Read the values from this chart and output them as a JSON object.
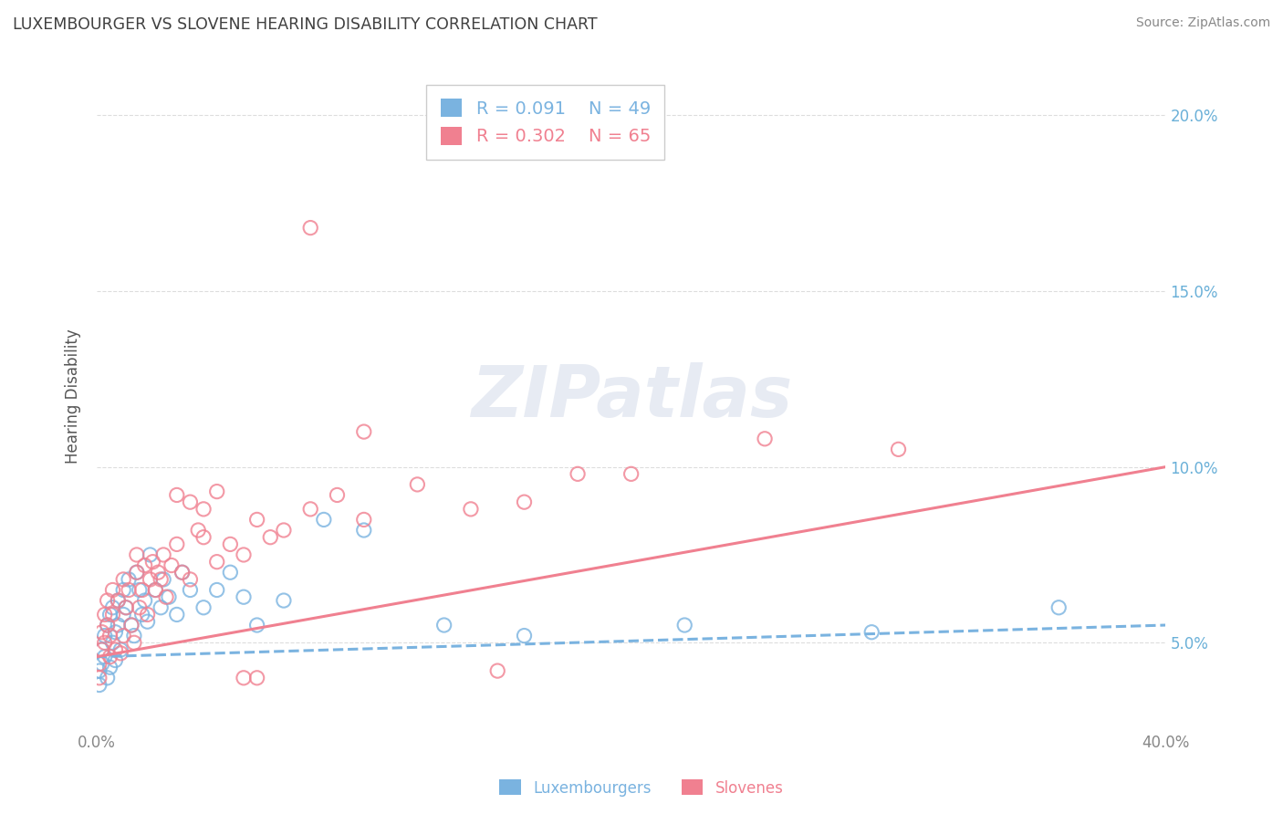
{
  "title": "LUXEMBOURGER VS SLOVENE HEARING DISABILITY CORRELATION CHART",
  "source": "Source: ZipAtlas.com",
  "ylabel": "Hearing Disability",
  "xlim": [
    0.0,
    0.4
  ],
  "ylim": [
    0.025,
    0.215
  ],
  "ytick_vals": [
    0.05,
    0.1,
    0.15,
    0.2
  ],
  "ytick_labels": [
    "5.0%",
    "10.0%",
    "15.0%",
    "20.0%"
  ],
  "xtick_vals": [
    0.0,
    0.4
  ],
  "xtick_labels": [
    "0.0%",
    "40.0%"
  ],
  "watermark": "ZIPatlas",
  "legend_lux": {
    "R": 0.091,
    "N": 49
  },
  "legend_slov": {
    "R": 0.302,
    "N": 65
  },
  "lux_color": "#7ab3e0",
  "slov_color": "#f08090",
  "lux_scatter_x": [
    0.001,
    0.001,
    0.002,
    0.002,
    0.003,
    0.003,
    0.004,
    0.004,
    0.005,
    0.005,
    0.006,
    0.006,
    0.007,
    0.007,
    0.008,
    0.008,
    0.009,
    0.01,
    0.01,
    0.011,
    0.012,
    0.013,
    0.014,
    0.015,
    0.016,
    0.017,
    0.018,
    0.019,
    0.02,
    0.022,
    0.024,
    0.025,
    0.027,
    0.03,
    0.032,
    0.035,
    0.04,
    0.045,
    0.05,
    0.055,
    0.06,
    0.07,
    0.085,
    0.1,
    0.13,
    0.16,
    0.22,
    0.29,
    0.36
  ],
  "lux_scatter_y": [
    0.042,
    0.038,
    0.048,
    0.044,
    0.052,
    0.046,
    0.055,
    0.04,
    0.058,
    0.043,
    0.05,
    0.06,
    0.053,
    0.045,
    0.062,
    0.055,
    0.048,
    0.065,
    0.058,
    0.06,
    0.068,
    0.055,
    0.052,
    0.07,
    0.065,
    0.058,
    0.062,
    0.056,
    0.075,
    0.065,
    0.06,
    0.068,
    0.063,
    0.058,
    0.07,
    0.065,
    0.06,
    0.065,
    0.07,
    0.063,
    0.055,
    0.062,
    0.085,
    0.082,
    0.055,
    0.052,
    0.055,
    0.053,
    0.06
  ],
  "slov_scatter_x": [
    0.001,
    0.001,
    0.002,
    0.002,
    0.003,
    0.003,
    0.004,
    0.004,
    0.005,
    0.005,
    0.006,
    0.006,
    0.007,
    0.008,
    0.009,
    0.01,
    0.01,
    0.011,
    0.012,
    0.013,
    0.014,
    0.015,
    0.015,
    0.016,
    0.017,
    0.018,
    0.019,
    0.02,
    0.021,
    0.022,
    0.023,
    0.024,
    0.025,
    0.026,
    0.028,
    0.03,
    0.032,
    0.035,
    0.038,
    0.04,
    0.045,
    0.05,
    0.055,
    0.06,
    0.065,
    0.07,
    0.08,
    0.09,
    0.1,
    0.12,
    0.14,
    0.16,
    0.18,
    0.2,
    0.06,
    0.08,
    0.1,
    0.3,
    0.15,
    0.25,
    0.03,
    0.035,
    0.04,
    0.045,
    0.055
  ],
  "slov_scatter_y": [
    0.044,
    0.04,
    0.048,
    0.053,
    0.058,
    0.05,
    0.055,
    0.062,
    0.046,
    0.052,
    0.058,
    0.065,
    0.048,
    0.062,
    0.047,
    0.052,
    0.068,
    0.06,
    0.065,
    0.055,
    0.05,
    0.07,
    0.075,
    0.06,
    0.065,
    0.072,
    0.058,
    0.068,
    0.073,
    0.065,
    0.07,
    0.068,
    0.075,
    0.063,
    0.072,
    0.078,
    0.07,
    0.068,
    0.082,
    0.08,
    0.073,
    0.078,
    0.075,
    0.085,
    0.08,
    0.082,
    0.088,
    0.092,
    0.085,
    0.095,
    0.088,
    0.09,
    0.098,
    0.098,
    0.04,
    0.168,
    0.11,
    0.105,
    0.042,
    0.108,
    0.092,
    0.09,
    0.088,
    0.093,
    0.04
  ],
  "lux_line_x": [
    0.0,
    0.4
  ],
  "lux_line_y": [
    0.046,
    0.055
  ],
  "slov_line_x": [
    0.0,
    0.4
  ],
  "slov_line_y": [
    0.046,
    0.1
  ],
  "grid_color": "#dddddd",
  "bg_color": "#ffffff",
  "title_color": "#404040",
  "axis_label_color": "#555555",
  "tick_color_right": "#6ab0d8",
  "tick_color_bottom": "#888888"
}
